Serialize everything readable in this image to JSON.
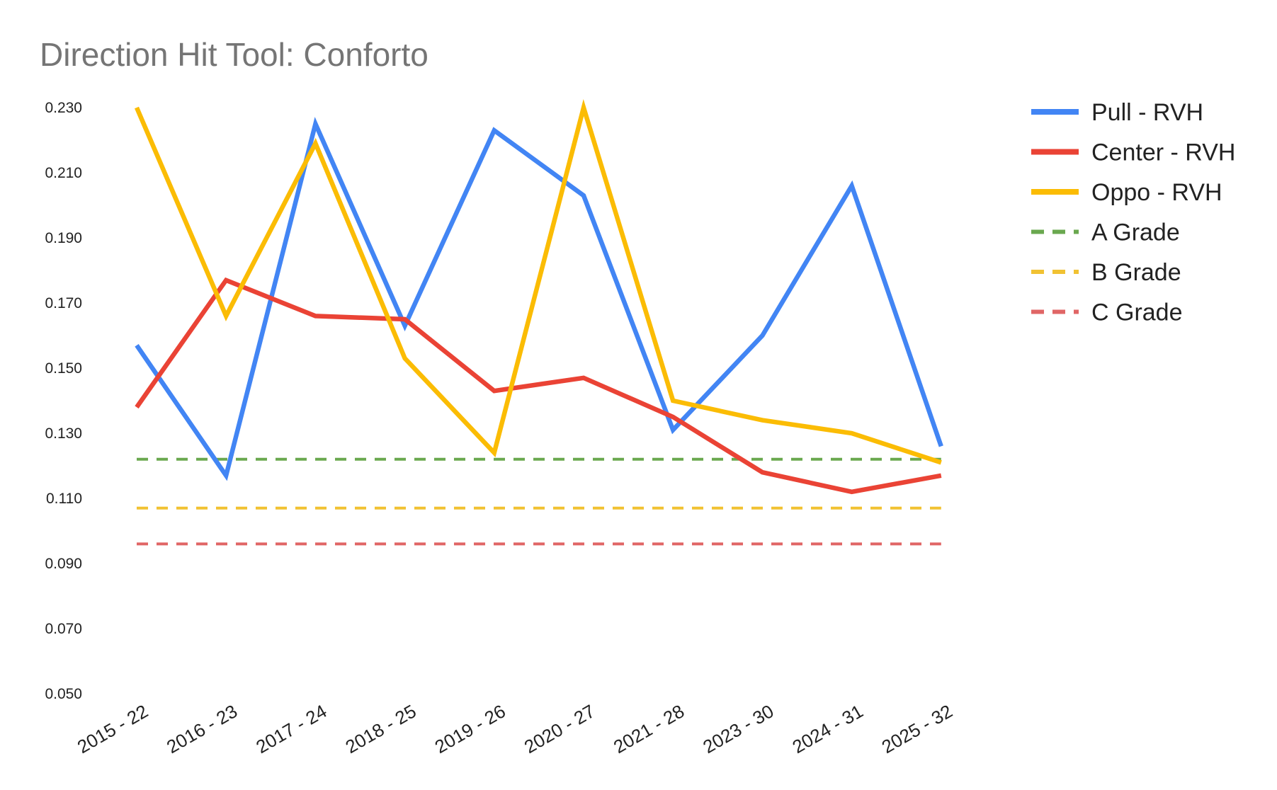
{
  "chart_data": {
    "type": "line",
    "title": "Direction Hit Tool: Conforto",
    "xlabel": "",
    "ylabel": "",
    "categories": [
      "2015 - 22",
      "2016 - 23",
      "2017 - 24",
      "2018 - 25",
      "2019 - 26",
      "2020 - 27",
      "2021 - 28",
      "2023 - 30",
      "2024 - 31",
      "2025 - 32"
    ],
    "ylim": [
      0.05,
      0.23
    ],
    "yticks": [
      "0.050",
      "0.070",
      "0.090",
      "0.110",
      "0.130",
      "0.150",
      "0.170",
      "0.190",
      "0.210",
      "0.230"
    ],
    "grid": false,
    "legend_position": "right",
    "series": [
      {
        "name": "Pull - RVH",
        "color": "#4285f4",
        "style": "solid",
        "values": [
          0.157,
          0.117,
          0.225,
          0.163,
          0.223,
          0.203,
          0.131,
          0.16,
          0.206,
          0.126
        ]
      },
      {
        "name": "Center - RVH",
        "color": "#ea4335",
        "style": "solid",
        "values": [
          0.138,
          0.177,
          0.166,
          0.165,
          0.143,
          0.147,
          0.135,
          0.118,
          0.112,
          0.117
        ]
      },
      {
        "name": "Oppo - RVH",
        "color": "#fbbc04",
        "style": "solid",
        "values": [
          0.23,
          0.166,
          0.219,
          0.153,
          0.124,
          0.23,
          0.14,
          0.134,
          0.13,
          0.121
        ]
      },
      {
        "name": "A Grade",
        "color": "#6aa84f",
        "style": "dashed",
        "values": [
          0.122,
          0.122,
          0.122,
          0.122,
          0.122,
          0.122,
          0.122,
          0.122,
          0.122,
          0.122
        ]
      },
      {
        "name": "B Grade",
        "color": "#f1c232",
        "style": "dashed",
        "values": [
          0.107,
          0.107,
          0.107,
          0.107,
          0.107,
          0.107,
          0.107,
          0.107,
          0.107,
          0.107
        ]
      },
      {
        "name": "C Grade",
        "color": "#e06666",
        "style": "dashed",
        "values": [
          0.096,
          0.096,
          0.096,
          0.096,
          0.096,
          0.096,
          0.096,
          0.096,
          0.096,
          0.096
        ]
      }
    ]
  }
}
